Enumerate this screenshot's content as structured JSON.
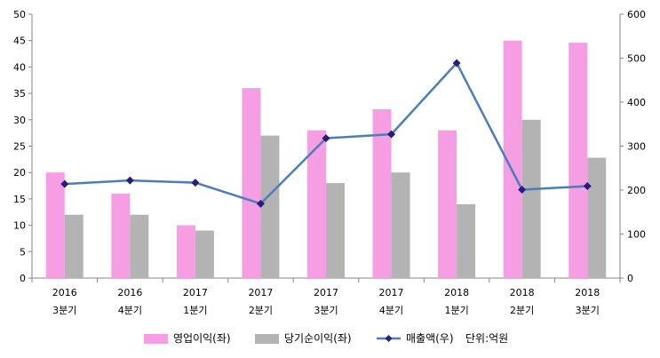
{
  "chart_data": {
    "type": "bar",
    "categories": [
      [
        "2016",
        "3분기"
      ],
      [
        "2016",
        "4분기"
      ],
      [
        "2017",
        "1분기"
      ],
      [
        "2017",
        "2분기"
      ],
      [
        "2017",
        "3분기"
      ],
      [
        "2017",
        "4분기"
      ],
      [
        "2018",
        "1분기"
      ],
      [
        "2018",
        "2분기"
      ],
      [
        "2018",
        "3분기"
      ]
    ],
    "series": [
      {
        "name": "영업이익(좌)",
        "kind": "bar",
        "axis": "left",
        "color": "#f59ee3",
        "values": [
          20,
          16,
          10,
          36,
          28,
          32,
          28,
          45,
          44.6
        ]
      },
      {
        "name": "당기순이익(좌)",
        "kind": "bar",
        "axis": "left",
        "color": "#b3b3b3",
        "values": [
          12,
          12,
          9,
          27,
          18,
          20,
          14,
          30,
          22.8
        ]
      },
      {
        "name": "매출액(우)",
        "kind": "line",
        "axis": "right",
        "color": "#4a7ebb",
        "marker_color": "#2d1b7a",
        "values": [
          214,
          222,
          217,
          169,
          318,
          327,
          489,
          201,
          209
        ]
      }
    ],
    "left_axis": {
      "min": 0,
      "max": 50,
      "step": 5
    },
    "right_axis": {
      "min": 0,
      "max": 600,
      "step": 100
    },
    "unit_note": "단위:억원",
    "legend_position": "bottom",
    "grid": false
  }
}
